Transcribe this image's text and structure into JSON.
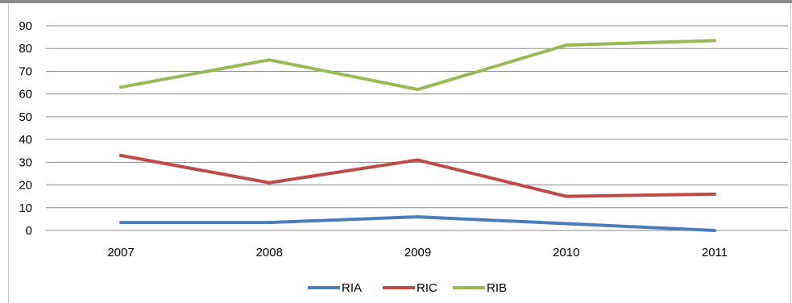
{
  "chart_data": {
    "type": "line",
    "categories": [
      "2007",
      "2008",
      "2009",
      "2010",
      "2011"
    ],
    "series": [
      {
        "name": "RIA",
        "color": "#4a7ebb",
        "values": [
          3.5,
          3.5,
          6,
          3,
          0
        ]
      },
      {
        "name": "RIC",
        "color": "#be4b48",
        "values": [
          33,
          21,
          31,
          15,
          16
        ]
      },
      {
        "name": "RIB",
        "color": "#98b954",
        "values": [
          63,
          75,
          62,
          81.5,
          83.5
        ]
      }
    ],
    "ylim": [
      0,
      90
    ],
    "yticks": [
      0,
      10,
      20,
      30,
      40,
      50,
      60,
      70,
      80,
      90
    ],
    "grid": true,
    "legend_position": "bottom"
  }
}
